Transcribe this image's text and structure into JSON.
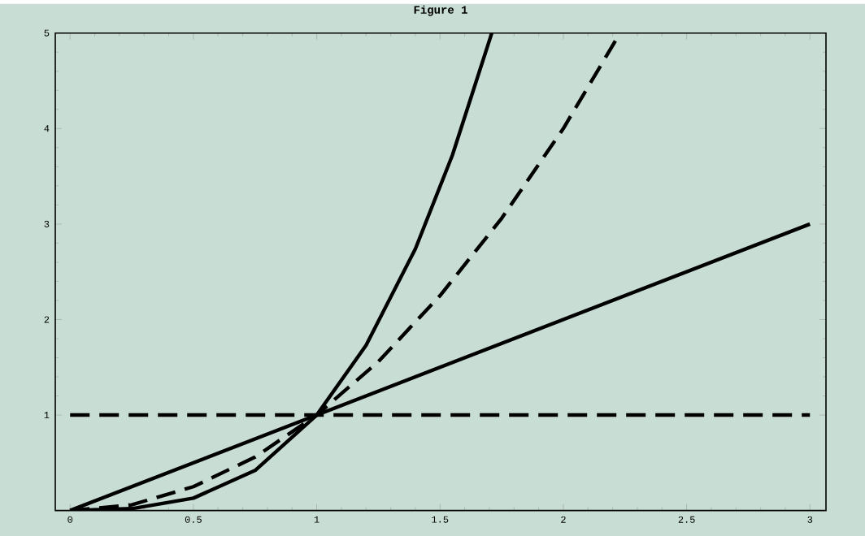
{
  "chart_data": {
    "type": "line",
    "title": "Figure 1",
    "xlim": [
      -0.06,
      3.065
    ],
    "ylim": [
      0,
      5
    ],
    "xticks": [
      0,
      0.5,
      1,
      1.5,
      2,
      2.5,
      3
    ],
    "yticks": [
      1,
      2,
      3,
      4,
      5
    ],
    "marker": "none",
    "series": [
      {
        "color": "#000000",
        "line_style": "dashed",
        "x": [
          0,
          3
        ],
        "values": [
          1,
          1
        ]
      },
      {
        "color": "#000000",
        "line_style": "solid",
        "x": [
          0,
          3
        ],
        "values": [
          0,
          3
        ]
      },
      {
        "color": "#000000",
        "line_style": "dashed",
        "x": [
          0,
          0.25,
          0.5,
          0.75,
          1,
          1.25,
          1.5,
          1.75,
          2,
          2.23
        ],
        "values": [
          0,
          0.06,
          0.25,
          0.56,
          1,
          1.56,
          2.25,
          3.06,
          4,
          5
        ]
      },
      {
        "color": "#000000",
        "line_style": "solid",
        "x": [
          0,
          0.25,
          0.5,
          0.75,
          1,
          1.2,
          1.4,
          1.55,
          1.71
        ],
        "values": [
          0,
          0.02,
          0.13,
          0.42,
          1,
          1.73,
          2.74,
          3.72,
          5
        ]
      }
    ]
  }
}
